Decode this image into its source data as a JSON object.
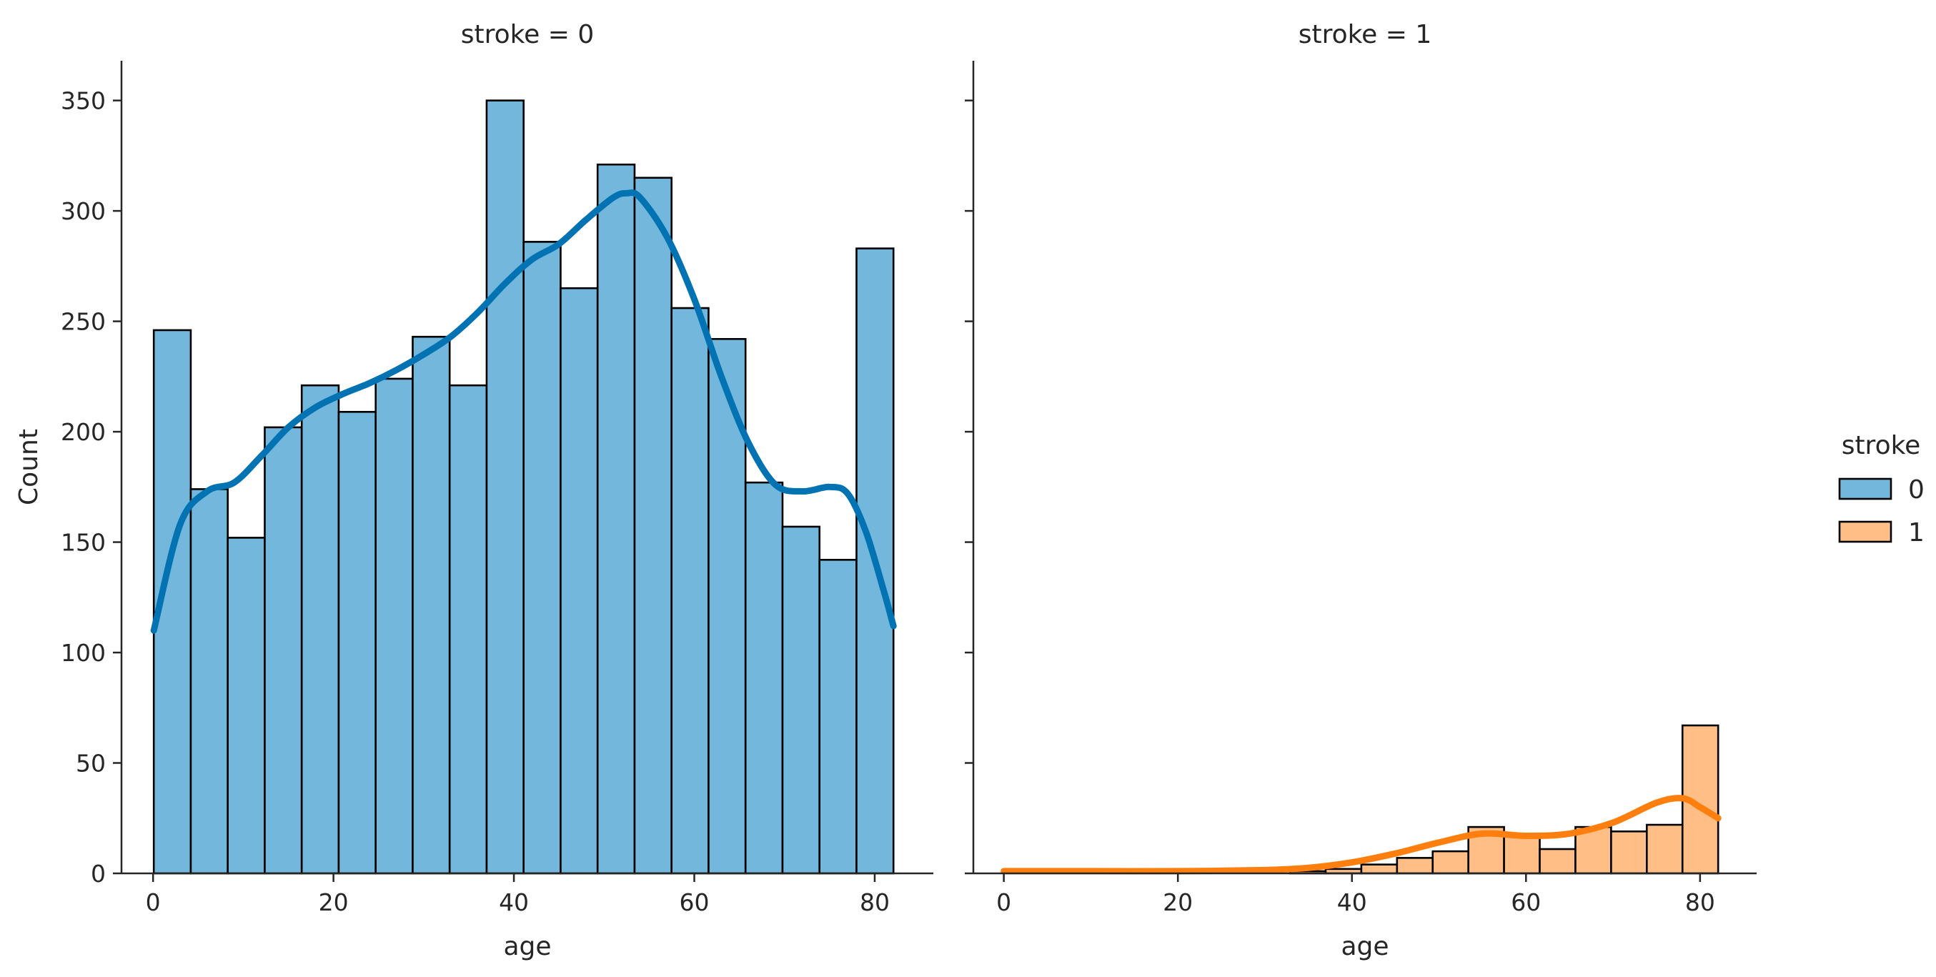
{
  "chart_data": {
    "type": "bar",
    "subtype": "faceted histogram with kde",
    "facet_variable": "stroke",
    "ylabel": "Count",
    "ylim": [
      0,
      368
    ],
    "yticks": [
      0,
      50,
      100,
      150,
      200,
      250,
      300,
      350
    ],
    "xticks": [
      0,
      20,
      40,
      60,
      80
    ],
    "xlim": [
      -3.5,
      86.5
    ],
    "bins": {
      "start": 0.08,
      "width": 4.1,
      "edges": [
        0.08,
        4.18,
        8.28,
        12.38,
        16.48,
        20.58,
        24.68,
        28.78,
        32.88,
        36.98,
        41.08,
        45.18,
        49.28,
        53.38,
        57.48,
        61.58,
        65.68,
        69.78,
        73.88,
        77.98,
        82.08
      ]
    },
    "legend": {
      "title": "stroke",
      "position": "right",
      "entries": [
        {
          "label": "0",
          "color": "#73b7dc"
        },
        {
          "label": "1",
          "color": "#ffbe86"
        }
      ]
    },
    "panels": [
      {
        "title": "stroke = 0",
        "xlabel": "age",
        "show_y_labels": true,
        "bar_color": "#73b7dc",
        "kde_color": "#0173b2",
        "counts": [
          246,
          174,
          152,
          202,
          221,
          209,
          224,
          243,
          221,
          350,
          286,
          265,
          321,
          315,
          256,
          242,
          177,
          157,
          142,
          283
        ],
        "kde": {
          "x": [
            0.08,
            3,
            6,
            9,
            12,
            15,
            18,
            21,
            24,
            27,
            30,
            33,
            36,
            39,
            42,
            45,
            48,
            51,
            52.5,
            54,
            57,
            60,
            63,
            66,
            69,
            72,
            75,
            77,
            79,
            81,
            82.08
          ],
          "y": [
            110,
            158,
            173,
            177,
            189,
            202,
            211,
            217,
            222,
            228,
            235,
            243,
            254,
            267,
            278,
            285,
            296,
            306,
            308,
            306,
            288,
            260,
            225,
            195,
            176,
            173,
            175,
            172,
            155,
            128,
            112
          ]
        }
      },
      {
        "title": "stroke = 1",
        "xlabel": "age",
        "show_y_labels": false,
        "bar_color": "#ffbe86",
        "kde_color": "#ff7f0e",
        "counts": [
          0,
          0,
          0,
          0,
          0,
          0,
          0,
          0,
          1,
          2,
          4,
          7,
          10,
          21,
          17,
          11,
          21,
          19,
          22,
          67
        ],
        "kde": {
          "x": [
            0,
            10,
            20,
            30,
            35,
            40,
            45,
            50,
            55,
            60,
            65,
            70,
            75,
            78,
            80,
            82.08
          ],
          "y": [
            1,
            1,
            1,
            1.5,
            2.5,
            5,
            9,
            14,
            18,
            17,
            18,
            23,
            32,
            34,
            30,
            25
          ]
        }
      }
    ]
  }
}
